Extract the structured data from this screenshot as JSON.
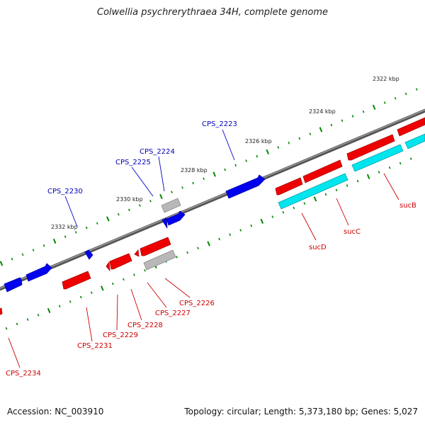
{
  "title": "Colwellia psychrerythraea 34H, complete genome",
  "accession": "Accession: NC_003910",
  "summary": "Topology: circular; Length: 5,373,180 bp; Genes: 5,027",
  "colors": {
    "forward": "#0000ee",
    "reverse": "#ee0000",
    "rna": "#00e5ee",
    "pseudo": "#b0b0b0",
    "backbone": "#777777",
    "ticks_minor": "#006600",
    "ticks_major": "#008800"
  },
  "kbp_labels": [
    "2322 kbp",
    "2324 kbp",
    "2326 kbp",
    "2328 kbp",
    "2330 kbp",
    "2332 kbp"
  ],
  "gene_labels": {
    "top": [
      "CPS_2223",
      "CPS_2224",
      "CPS_2225",
      "CPS_2230"
    ],
    "bottom": [
      "CPS_2226",
      "CPS_2227",
      "CPS_2228",
      "CPS_2229",
      "CPS_2231",
      "CPS_2234",
      "sucB",
      "sucC",
      "sucD"
    ]
  }
}
